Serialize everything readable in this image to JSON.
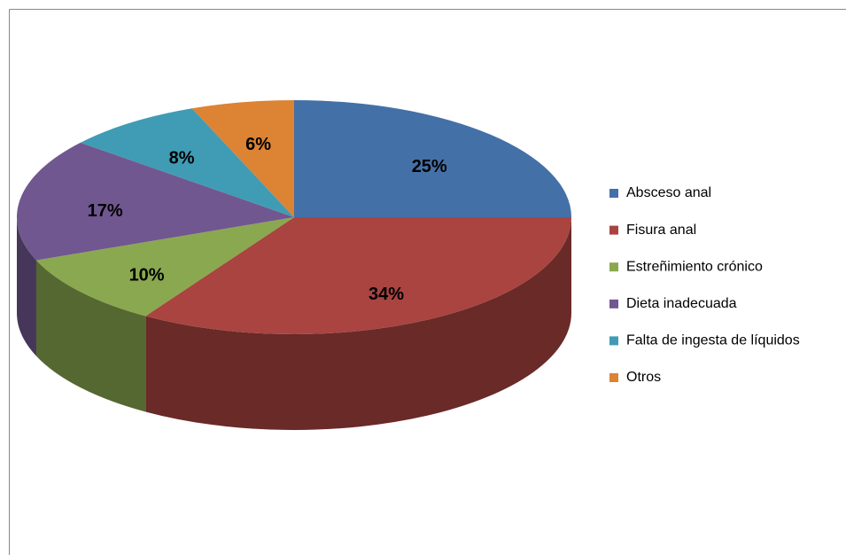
{
  "chart_data": {
    "type": "pie",
    "categories": [
      "Absceso anal",
      "Fisura anal",
      "Estreñimiento crónico",
      "Dieta inadecuada",
      "Falta de ingesta de líquidos",
      "Otros"
    ],
    "values": [
      25,
      34,
      10,
      17,
      8,
      6
    ],
    "value_labels": [
      "25%",
      "34%",
      "10%",
      "17%",
      "8%",
      "6%"
    ],
    "colors": [
      "#4470a8",
      "#a94441",
      "#8aa84f",
      "#715790",
      "#3f9cb4",
      "#dd8334"
    ],
    "legend": "right"
  }
}
